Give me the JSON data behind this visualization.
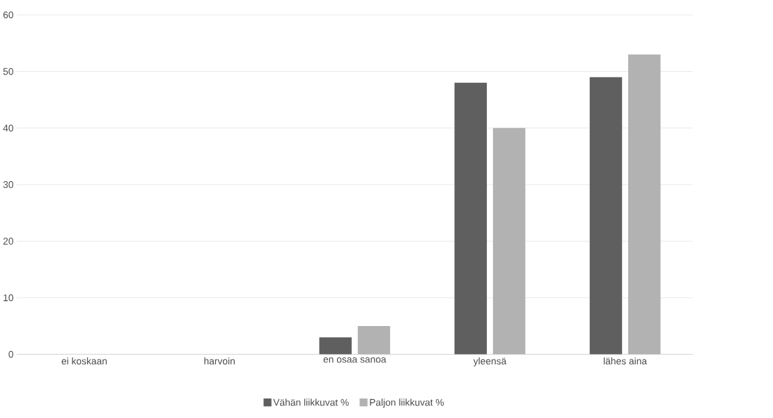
{
  "chart_data": {
    "type": "bar",
    "categories": [
      "ei koskaan",
      "harvoin",
      "en osaa sanoa",
      "yleensä",
      "lähes aina"
    ],
    "series": [
      {
        "name": "Vähän liikkuvat %",
        "color": "#5f5f5f",
        "values": [
          0,
          0,
          3,
          48,
          49
        ]
      },
      {
        "name": "Paljon liikkuvat %",
        "color": "#b2b2b2",
        "values": [
          0,
          0,
          5,
          40,
          53
        ]
      }
    ],
    "ylim": [
      0,
      60
    ],
    "yticks": [
      0,
      10,
      20,
      30,
      40,
      50,
      60
    ],
    "grid": "y",
    "legend": "bottom"
  }
}
